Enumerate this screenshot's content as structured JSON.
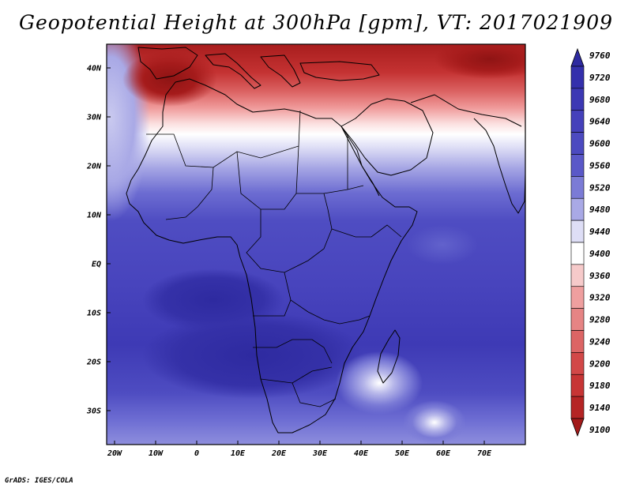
{
  "title": "Geopotential Height at 300hPa [gpm], VT: 2017021909",
  "credit": "GrADS: IGES/COLA",
  "map": {
    "region": "Africa",
    "lon_ticks": [
      "20W",
      "10W",
      "0",
      "10E",
      "20E",
      "30E",
      "40E",
      "50E",
      "60E",
      "70E"
    ],
    "lat_ticks": [
      "40N",
      "30N",
      "20N",
      "10N",
      "EQ",
      "10S",
      "20S",
      "30S"
    ]
  },
  "colorbar": {
    "levels": [
      "9760",
      "9720",
      "9680",
      "9640",
      "9600",
      "9560",
      "9520",
      "9480",
      "9440",
      "9400",
      "9360",
      "9320",
      "9280",
      "9240",
      "9200",
      "9180",
      "9140",
      "9100"
    ],
    "colors": [
      "#2e2aa0",
      "#3430ac",
      "#3c38b4",
      "#4541bb",
      "#4c4ac0",
      "#5a58c8",
      "#7b7bd6",
      "#a9a9e6",
      "#dedef6",
      "#ffffff",
      "#f6caca",
      "#ef9f9f",
      "#e68484",
      "#dc6565",
      "#d24848",
      "#c73535",
      "#b52525",
      "#a31b1b"
    ]
  }
}
